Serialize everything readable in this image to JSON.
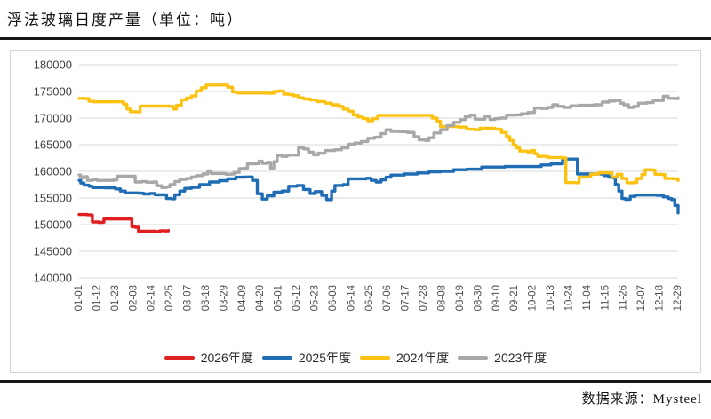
{
  "page": {
    "title": "浮法玻璃日度产量（单位：吨）",
    "source_note": "数据来源：Mysteel"
  },
  "chart_data": {
    "type": "line",
    "title": "浮法玻璃日度产量（单位：吨）",
    "unit": "吨",
    "grid": true,
    "legend_position": "bottom",
    "y_axis": {
      "min": 140000,
      "max": 180000,
      "step": 5000,
      "tick_labels": [
        "140000",
        "145000",
        "150000",
        "155000",
        "160000",
        "165000",
        "170000",
        "175000",
        "180000"
      ]
    },
    "x_axis": {
      "tick_labels": [
        "01-01",
        "01-12",
        "01-23",
        "02-03",
        "02-14",
        "02-25",
        "03-07",
        "03-18",
        "03-29",
        "04-09",
        "04-20",
        "05-01",
        "05-12",
        "05-23",
        "06-03",
        "06-14",
        "06-25",
        "07-06",
        "07-17",
        "07-28",
        "08-08",
        "08-19",
        "08-30",
        "09-10",
        "09-21",
        "10-02",
        "10-13",
        "10-24",
        "11-04",
        "11-15",
        "11-26",
        "12-07",
        "12-18",
        "12-29"
      ],
      "tick_interval_days": 11,
      "total_days": 363
    },
    "series": [
      {
        "name": "2026年度",
        "color": "#e02020",
        "points": [
          [
            0,
            151900
          ],
          [
            5,
            151850
          ],
          [
            7,
            151800
          ],
          [
            8,
            150500
          ],
          [
            12,
            150400
          ],
          [
            14,
            150450
          ],
          [
            15,
            151050
          ],
          [
            30,
            151050
          ],
          [
            32,
            149600
          ],
          [
            34,
            149500
          ],
          [
            36,
            148750
          ],
          [
            46,
            148700
          ],
          [
            49,
            148850
          ],
          [
            52,
            148800
          ],
          [
            54,
            148900
          ]
        ]
      },
      {
        "name": "2025年度",
        "color": "#1f6db4",
        "points": [
          [
            0,
            158300
          ],
          [
            1,
            157800
          ],
          [
            3,
            157400
          ],
          [
            6,
            157200
          ],
          [
            8,
            156950
          ],
          [
            16,
            156900
          ],
          [
            22,
            156700
          ],
          [
            25,
            156300
          ],
          [
            28,
            155950
          ],
          [
            36,
            155900
          ],
          [
            39,
            155750
          ],
          [
            43,
            155850
          ],
          [
            46,
            155600
          ],
          [
            51,
            155600
          ],
          [
            53,
            154900
          ],
          [
            56,
            154850
          ],
          [
            58,
            155600
          ],
          [
            61,
            156300
          ],
          [
            64,
            156800
          ],
          [
            68,
            157000
          ],
          [
            73,
            157500
          ],
          [
            79,
            158000
          ],
          [
            85,
            158250
          ],
          [
            90,
            158600
          ],
          [
            95,
            158900
          ],
          [
            101,
            158950
          ],
          [
            105,
            158300
          ],
          [
            108,
            155800
          ],
          [
            111,
            154800
          ],
          [
            114,
            155400
          ],
          [
            118,
            156100
          ],
          [
            123,
            156300
          ],
          [
            127,
            157200
          ],
          [
            132,
            157350
          ],
          [
            136,
            156600
          ],
          [
            140,
            155850
          ],
          [
            143,
            156200
          ],
          [
            147,
            155500
          ],
          [
            150,
            154700
          ],
          [
            153,
            156300
          ],
          [
            155,
            157350
          ],
          [
            160,
            157500
          ],
          [
            163,
            158600
          ],
          [
            174,
            158700
          ],
          [
            177,
            158300
          ],
          [
            180,
            158000
          ],
          [
            183,
            158400
          ],
          [
            186,
            158900
          ],
          [
            189,
            159300
          ],
          [
            197,
            159500
          ],
          [
            205,
            159700
          ],
          [
            212,
            159900
          ],
          [
            219,
            160000
          ],
          [
            227,
            160300
          ],
          [
            235,
            160400
          ],
          [
            244,
            160800
          ],
          [
            258,
            160900
          ],
          [
            272,
            160900
          ],
          [
            280,
            161200
          ],
          [
            286,
            161400
          ],
          [
            293,
            162300
          ],
          [
            300,
            162300
          ],
          [
            302,
            159500
          ],
          [
            315,
            159500
          ],
          [
            318,
            159200
          ],
          [
            321,
            158900
          ],
          [
            323,
            158800
          ],
          [
            325,
            157500
          ],
          [
            327,
            156300
          ],
          [
            329,
            154900
          ],
          [
            331,
            154750
          ],
          [
            334,
            155300
          ],
          [
            337,
            155550
          ],
          [
            350,
            155500
          ],
          [
            354,
            155200
          ],
          [
            357,
            154900
          ],
          [
            359,
            154700
          ],
          [
            361,
            153600
          ],
          [
            363,
            152200
          ]
        ]
      },
      {
        "name": "2024年度",
        "color": "#fcc212",
        "points": [
          [
            0,
            173700
          ],
          [
            4,
            173650
          ],
          [
            6,
            173150
          ],
          [
            9,
            173050
          ],
          [
            24,
            173050
          ],
          [
            27,
            172600
          ],
          [
            29,
            171700
          ],
          [
            31,
            171200
          ],
          [
            35,
            171150
          ],
          [
            37,
            172250
          ],
          [
            52,
            172250
          ],
          [
            55,
            172200
          ],
          [
            57,
            171700
          ],
          [
            59,
            172400
          ],
          [
            62,
            173400
          ],
          [
            65,
            173750
          ],
          [
            68,
            174150
          ],
          [
            71,
            175100
          ],
          [
            74,
            175700
          ],
          [
            77,
            176200
          ],
          [
            87,
            176200
          ],
          [
            90,
            175800
          ],
          [
            93,
            174900
          ],
          [
            96,
            174700
          ],
          [
            115,
            174650
          ],
          [
            118,
            175000
          ],
          [
            121,
            175100
          ],
          [
            124,
            174500
          ],
          [
            127,
            174400
          ],
          [
            130,
            174200
          ],
          [
            133,
            173800
          ],
          [
            136,
            173600
          ],
          [
            140,
            173400
          ],
          [
            144,
            173100
          ],
          [
            149,
            172800
          ],
          [
            153,
            172500
          ],
          [
            157,
            172200
          ],
          [
            160,
            171700
          ],
          [
            163,
            171300
          ],
          [
            166,
            170600
          ],
          [
            169,
            170200
          ],
          [
            172,
            169900
          ],
          [
            175,
            169500
          ],
          [
            178,
            169900
          ],
          [
            181,
            170500
          ],
          [
            211,
            170500
          ],
          [
            214,
            170000
          ],
          [
            217,
            169400
          ],
          [
            219,
            168400
          ],
          [
            230,
            168300
          ],
          [
            235,
            167900
          ],
          [
            240,
            167800
          ],
          [
            243,
            168100
          ],
          [
            248,
            168100
          ],
          [
            252,
            167900
          ],
          [
            256,
            167300
          ],
          [
            259,
            166500
          ],
          [
            261,
            165800
          ],
          [
            263,
            164900
          ],
          [
            265,
            164400
          ],
          [
            267,
            163800
          ],
          [
            272,
            163600
          ],
          [
            274,
            163900
          ],
          [
            276,
            163300
          ],
          [
            278,
            162800
          ],
          [
            284,
            162600
          ],
          [
            293,
            162500
          ],
          [
            295,
            157900
          ],
          [
            301,
            157850
          ],
          [
            303,
            158900
          ],
          [
            308,
            158950
          ],
          [
            310,
            159450
          ],
          [
            313,
            159500
          ],
          [
            315,
            159750
          ],
          [
            321,
            159700
          ],
          [
            323,
            158900
          ],
          [
            326,
            159450
          ],
          [
            329,
            158650
          ],
          [
            332,
            157850
          ],
          [
            336,
            157900
          ],
          [
            338,
            158650
          ],
          [
            341,
            159400
          ],
          [
            343,
            160300
          ],
          [
            347,
            160250
          ],
          [
            349,
            159450
          ],
          [
            353,
            159400
          ],
          [
            355,
            158650
          ],
          [
            360,
            158600
          ],
          [
            363,
            158300
          ]
        ]
      },
      {
        "name": "2023年度",
        "color": "#a8a8a8",
        "points": [
          [
            0,
            159300
          ],
          [
            1,
            158800
          ],
          [
            3,
            159000
          ],
          [
            5,
            158300
          ],
          [
            8,
            158450
          ],
          [
            11,
            158300
          ],
          [
            21,
            158400
          ],
          [
            23,
            159100
          ],
          [
            32,
            159100
          ],
          [
            34,
            158000
          ],
          [
            38,
            158100
          ],
          [
            41,
            157950
          ],
          [
            45,
            158000
          ],
          [
            47,
            157300
          ],
          [
            50,
            156950
          ],
          [
            53,
            157100
          ],
          [
            55,
            157500
          ],
          [
            58,
            158100
          ],
          [
            61,
            158500
          ],
          [
            65,
            158650
          ],
          [
            68,
            158950
          ],
          [
            71,
            159200
          ],
          [
            75,
            159500
          ],
          [
            78,
            160100
          ],
          [
            80,
            159600
          ],
          [
            86,
            159600
          ],
          [
            89,
            159450
          ],
          [
            92,
            159500
          ],
          [
            94,
            159800
          ],
          [
            97,
            160500
          ],
          [
            100,
            160600
          ],
          [
            102,
            161400
          ],
          [
            107,
            161450
          ],
          [
            109,
            161900
          ],
          [
            111,
            161500
          ],
          [
            114,
            161700
          ],
          [
            116,
            160600
          ],
          [
            118,
            161800
          ],
          [
            120,
            163000
          ],
          [
            123,
            162800
          ],
          [
            126,
            163050
          ],
          [
            131,
            163050
          ],
          [
            133,
            164450
          ],
          [
            136,
            164200
          ],
          [
            139,
            163600
          ],
          [
            142,
            163100
          ],
          [
            145,
            163400
          ],
          [
            149,
            163900
          ],
          [
            155,
            164050
          ],
          [
            159,
            164400
          ],
          [
            163,
            165100
          ],
          [
            167,
            165300
          ],
          [
            171,
            165600
          ],
          [
            175,
            166200
          ],
          [
            179,
            166400
          ],
          [
            183,
            167100
          ],
          [
            186,
            167800
          ],
          [
            189,
            167500
          ],
          [
            194,
            167450
          ],
          [
            199,
            167300
          ],
          [
            203,
            166500
          ],
          [
            206,
            165900
          ],
          [
            210,
            165800
          ],
          [
            212,
            166300
          ],
          [
            215,
            167200
          ],
          [
            219,
            167800
          ],
          [
            223,
            168600
          ],
          [
            227,
            169200
          ],
          [
            231,
            169700
          ],
          [
            234,
            170300
          ],
          [
            237,
            170550
          ],
          [
            240,
            169800
          ],
          [
            244,
            169800
          ],
          [
            246,
            170350
          ],
          [
            249,
            169750
          ],
          [
            252,
            169900
          ],
          [
            255,
            170000
          ],
          [
            259,
            170550
          ],
          [
            264,
            170600
          ],
          [
            268,
            170800
          ],
          [
            272,
            171050
          ],
          [
            276,
            171900
          ],
          [
            280,
            171800
          ],
          [
            284,
            172000
          ],
          [
            287,
            172500
          ],
          [
            290,
            172200
          ],
          [
            294,
            172000
          ],
          [
            298,
            172300
          ],
          [
            303,
            172400
          ],
          [
            312,
            172500
          ],
          [
            317,
            173000
          ],
          [
            321,
            173200
          ],
          [
            325,
            173300
          ],
          [
            328,
            172800
          ],
          [
            330,
            172500
          ],
          [
            333,
            172000
          ],
          [
            336,
            172200
          ],
          [
            339,
            172800
          ],
          [
            344,
            172900
          ],
          [
            348,
            173300
          ],
          [
            352,
            173300
          ],
          [
            354,
            174100
          ],
          [
            357,
            173700
          ],
          [
            361,
            173650
          ],
          [
            363,
            173800
          ]
        ]
      }
    ],
    "source": "数据来源：Mysteel"
  }
}
